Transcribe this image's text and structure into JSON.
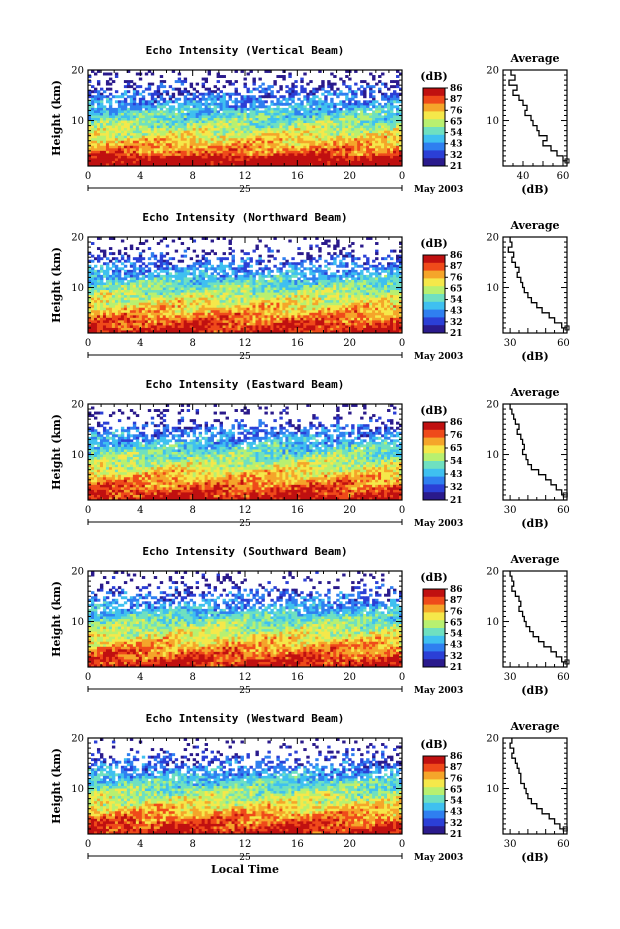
{
  "chart_data": [
    {
      "type": "heatmap",
      "title": "Echo Intensity (Vertical Beam)",
      "ylabel": "Height (km)",
      "yticks": [
        "20",
        "10"
      ],
      "xticks": [
        "0",
        "4",
        "8",
        "12",
        "16",
        "20",
        "0"
      ],
      "xlim": [
        0,
        24
      ],
      "ylim": [
        1,
        20
      ],
      "day_label": "25",
      "month_label": "May 2003",
      "colorbar_unit": "(dB)",
      "colorbar_labels": [
        "86",
        "87",
        "76",
        "65",
        "54",
        "43",
        "32",
        "21"
      ],
      "profile": {
        "title": "Average",
        "xlabel": "(dB)",
        "xticks": [
          "40",
          "60"
        ],
        "xlim": [
          30,
          62
        ],
        "yticks": [
          "20",
          "10"
        ],
        "heights": [
          20,
          19,
          18,
          17,
          16,
          15,
          14,
          13,
          12,
          11,
          10,
          9,
          8,
          7,
          6,
          5,
          4,
          3,
          2
        ],
        "values": [
          34,
          36,
          33,
          37,
          35,
          38,
          40,
          42,
          41,
          44,
          45,
          47,
          48,
          52,
          50,
          54,
          57,
          60,
          62
        ]
      }
    },
    {
      "type": "heatmap",
      "title": "Echo Intensity (Northward Beam)",
      "ylabel": "Height (km)",
      "yticks": [
        "20",
        "10"
      ],
      "xticks": [
        "0",
        "4",
        "8",
        "12",
        "16",
        "20",
        "0"
      ],
      "xlim": [
        0,
        24
      ],
      "ylim": [
        1,
        20
      ],
      "day_label": "25",
      "month_label": "May 2003",
      "colorbar_unit": "(dB)",
      "colorbar_labels": [
        "86",
        "87",
        "76",
        "65",
        "54",
        "43",
        "32",
        "21"
      ],
      "profile": {
        "title": "Average",
        "xlabel": "(dB)",
        "xticks": [
          "30",
          "60"
        ],
        "xlim": [
          26,
          62
        ],
        "yticks": [
          "20",
          "10"
        ],
        "heights": [
          20,
          19,
          18,
          17,
          16,
          15,
          14,
          13,
          12,
          11,
          10,
          9,
          8,
          7,
          6,
          5,
          4,
          3,
          2
        ],
        "values": [
          30,
          31,
          29,
          32,
          31,
          33,
          35,
          34,
          36,
          37,
          38,
          40,
          42,
          45,
          48,
          52,
          55,
          59,
          62
        ]
      }
    },
    {
      "type": "heatmap",
      "title": "Echo Intensity (Eastward Beam)",
      "ylabel": "Height (km)",
      "yticks": [
        "20",
        "10"
      ],
      "xticks": [
        "0",
        "4",
        "8",
        "12",
        "16",
        "20",
        "0"
      ],
      "xlim": [
        0,
        24
      ],
      "ylim": [
        1,
        20
      ],
      "day_label": "25",
      "month_label": "May 2003",
      "colorbar_unit": "(dB)",
      "colorbar_labels": [
        "86",
        "76",
        "65",
        "54",
        "43",
        "32",
        "21"
      ],
      "profile": {
        "title": "Average",
        "xlabel": "(dB)",
        "xticks": [
          "30",
          "60"
        ],
        "xlim": [
          26,
          62
        ],
        "yticks": [
          "20",
          "10"
        ],
        "heights": [
          20,
          19,
          18,
          17,
          16,
          15,
          14,
          13,
          12,
          11,
          10,
          9,
          8,
          7,
          6,
          5,
          4,
          3,
          2
        ],
        "values": [
          30,
          31,
          32,
          33,
          35,
          34,
          36,
          37,
          38,
          37,
          39,
          40,
          42,
          46,
          50,
          53,
          56,
          59,
          61
        ]
      }
    },
    {
      "type": "heatmap",
      "title": "Echo Intensity (Southward Beam)",
      "ylabel": "Height (km)",
      "yticks": [
        "20",
        "10"
      ],
      "xticks": [
        "0",
        "4",
        "8",
        "12",
        "16",
        "20",
        "0"
      ],
      "xlim": [
        0,
        24
      ],
      "ylim": [
        1,
        20
      ],
      "day_label": "25",
      "month_label": "May 2003",
      "colorbar_unit": "(dB)",
      "colorbar_labels": [
        "86",
        "87",
        "76",
        "65",
        "54",
        "43",
        "32",
        "21"
      ],
      "profile": {
        "title": "Average",
        "xlabel": "(dB)",
        "xticks": [
          "30",
          "60"
        ],
        "xlim": [
          26,
          62
        ],
        "yticks": [
          "20",
          "10"
        ],
        "heights": [
          20,
          19,
          18,
          17,
          16,
          15,
          14,
          13,
          12,
          11,
          10,
          9,
          8,
          7,
          6,
          5,
          4,
          3,
          2
        ],
        "values": [
          30,
          31,
          32,
          31,
          33,
          35,
          36,
          35,
          37,
          38,
          39,
          41,
          43,
          46,
          49,
          53,
          56,
          59,
          62
        ]
      }
    },
    {
      "type": "heatmap",
      "title": "Echo Intensity (Westward Beam)",
      "ylabel": "Height (km)",
      "xlabel": "Local Time",
      "yticks": [
        "20",
        "10"
      ],
      "xticks": [
        "0",
        "4",
        "8",
        "12",
        "16",
        "20",
        "0"
      ],
      "xlim": [
        0,
        24
      ],
      "ylim": [
        1,
        20
      ],
      "day_label": "25",
      "month_label": "May 2003",
      "colorbar_unit": "(dB)",
      "colorbar_labels": [
        "86",
        "87",
        "76",
        "65",
        "54",
        "43",
        "32",
        "21"
      ],
      "profile": {
        "title": "Average",
        "xlabel": "(dB)",
        "xticks": [
          "30",
          "60"
        ],
        "xlim": [
          26,
          62
        ],
        "yticks": [
          "20",
          "10"
        ],
        "heights": [
          20,
          19,
          18,
          17,
          16,
          15,
          14,
          13,
          12,
          11,
          10,
          9,
          8,
          7,
          6,
          5,
          4,
          3,
          2
        ],
        "values": [
          31,
          30,
          32,
          31,
          33,
          34,
          35,
          36,
          36,
          38,
          39,
          40,
          42,
          45,
          48,
          52,
          55,
          58,
          61
        ]
      }
    }
  ],
  "colors": {
    "colormap": [
      "#2a1a8c",
      "#2b3fd6",
      "#2f7ff0",
      "#3fc0f0",
      "#6fe0c0",
      "#b8f070",
      "#f5e84a",
      "#f5a52a",
      "#ef4a1a",
      "#c01010"
    ],
    "background": "#ffffff"
  }
}
